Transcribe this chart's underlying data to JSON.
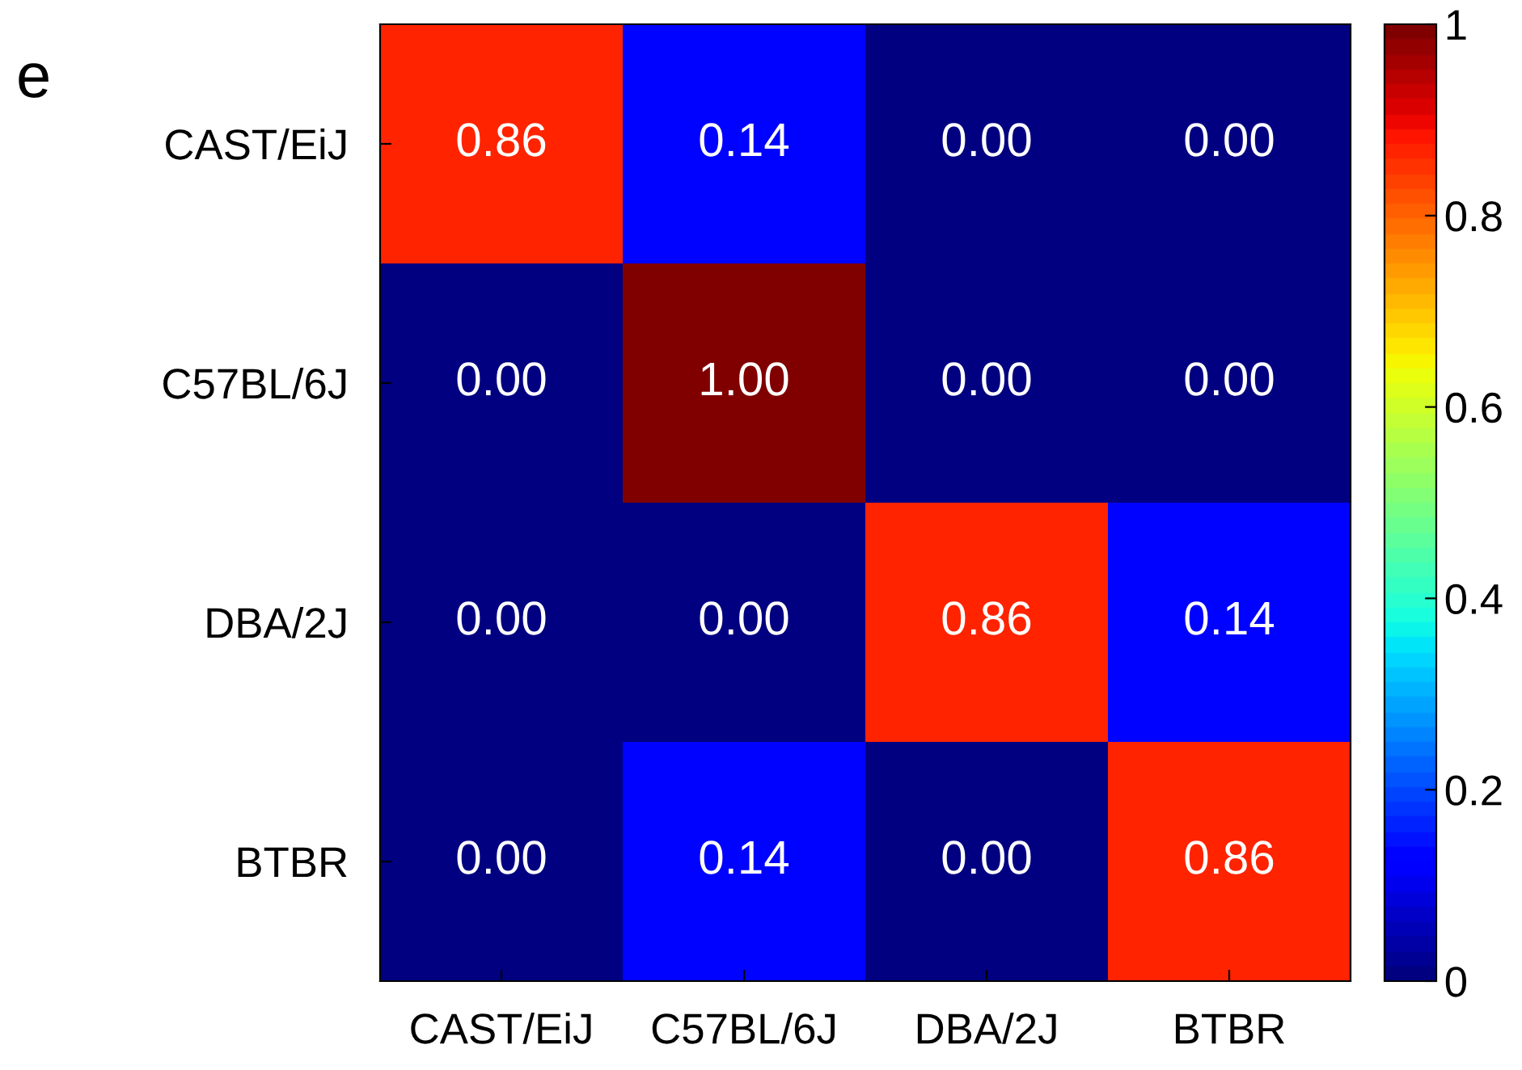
{
  "chart_data": {
    "type": "heatmap",
    "categories": [
      "CAST/EiJ",
      "C57BL/6J",
      "DBA/2J",
      "BTBR"
    ],
    "y_categories": [
      "CAST/EiJ",
      "C57BL/6J",
      "DBA/2J",
      "BTBR"
    ],
    "cells": [
      [
        0.86,
        0.14,
        0,
        0
      ],
      [
        0,
        1,
        0,
        0
      ],
      [
        0,
        0,
        0.86,
        0.14
      ],
      [
        0,
        0.14,
        0,
        0.86
      ]
    ],
    "cell_labels": [
      [
        "0.86",
        "0.14",
        "0.00",
        "0.00"
      ],
      [
        "0.00",
        "1.00",
        "0.00",
        "0.00"
      ],
      [
        "0.00",
        "0.00",
        "0.86",
        "0.14"
      ],
      [
        "0.00",
        "0.14",
        "0.00",
        "0.86"
      ]
    ],
    "clim": [
      0,
      1
    ],
    "cticks": [
      0,
      0.2,
      0.4,
      0.6,
      0.8,
      1
    ],
    "annotations": [
      "e"
    ]
  }
}
